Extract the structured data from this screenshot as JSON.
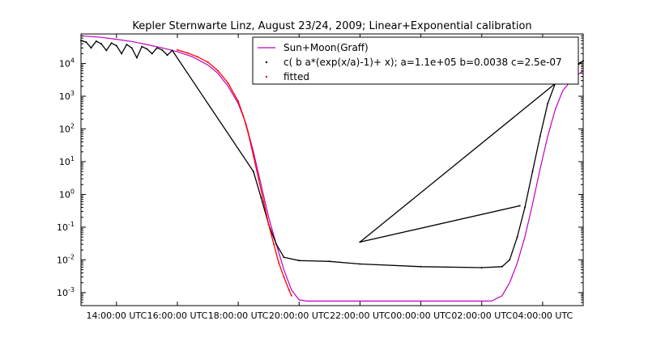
{
  "chart_data": {
    "type": "line",
    "title": "Kepler Sternwarte Linz, August 23/24, 2009; Linear+Exponential calibration",
    "xlabel": "",
    "ylabel": "",
    "x_range": [
      "2009-08-23T12:50",
      "2009-08-24T05:20"
    ],
    "y_scale": "log",
    "ylim": [
      0.0004,
      80000
    ],
    "x_ticks": [
      {
        "t": "2009-08-23T14:00",
        "label": "14:00:00 UTC"
      },
      {
        "t": "2009-08-23T16:00",
        "label": "16:00:00 UTC"
      },
      {
        "t": "2009-08-23T18:00",
        "label": "18:00:00 UTC"
      },
      {
        "t": "2009-08-23T20:00",
        "label": "20:00:00 UTC"
      },
      {
        "t": "2009-08-23T22:00",
        "label": "22:00:00 UTC"
      },
      {
        "t": "2009-08-24T00:00",
        "label": "00:00:00 UTC"
      },
      {
        "t": "2009-08-24T02:00",
        "label": "02:00:00 UTC"
      },
      {
        "t": "2009-08-24T04:00",
        "label": "04:00:00 UTC"
      }
    ],
    "y_ticks": [
      {
        "v": 0.001,
        "base": "10",
        "exp": "-3"
      },
      {
        "v": 0.01,
        "base": "10",
        "exp": "-2"
      },
      {
        "v": 0.1,
        "base": "10",
        "exp": "-1"
      },
      {
        "v": 1,
        "base": "10",
        "exp": "0"
      },
      {
        "v": 10,
        "base": "10",
        "exp": "1"
      },
      {
        "v": 100,
        "base": "10",
        "exp": "2"
      },
      {
        "v": 1000,
        "base": "10",
        "exp": "3"
      },
      {
        "v": 10000,
        "base": "10",
        "exp": "4"
      }
    ],
    "grid": false,
    "legend": "top-right",
    "series": [
      {
        "name": "Sun+Moon(Graff)",
        "style": "line",
        "color": "#bf00bf",
        "points": [
          [
            "2009-08-23T12:50",
            70000
          ],
          [
            "2009-08-23T13:30",
            63000
          ],
          [
            "2009-08-23T14:00",
            55000
          ],
          [
            "2009-08-23T14:30",
            47000
          ],
          [
            "2009-08-23T15:00",
            38000
          ],
          [
            "2009-08-23T15:30",
            30000
          ],
          [
            "2009-08-23T16:00",
            23000
          ],
          [
            "2009-08-23T16:30",
            16000
          ],
          [
            "2009-08-23T17:00",
            9000
          ],
          [
            "2009-08-23T17:20",
            5000
          ],
          [
            "2009-08-23T17:40",
            2000
          ],
          [
            "2009-08-23T18:00",
            600
          ],
          [
            "2009-08-23T18:15",
            150
          ],
          [
            "2009-08-23T18:30",
            20
          ],
          [
            "2009-08-23T18:45",
            2
          ],
          [
            "2009-08-23T19:00",
            0.2
          ],
          [
            "2009-08-23T19:15",
            0.03
          ],
          [
            "2009-08-23T19:30",
            0.005
          ],
          [
            "2009-08-23T19:45",
            0.0012
          ],
          [
            "2009-08-23T20:00",
            0.0006
          ],
          [
            "2009-08-23T20:15",
            0.00055
          ],
          [
            "2009-08-24T02:00",
            0.00055
          ],
          [
            "2009-08-24T02:20",
            0.00056
          ],
          [
            "2009-08-24T02:40",
            0.0008
          ],
          [
            "2009-08-24T02:55",
            0.002
          ],
          [
            "2009-08-24T03:10",
            0.008
          ],
          [
            "2009-08-24T03:25",
            0.05
          ],
          [
            "2009-08-24T03:40",
            0.5
          ],
          [
            "2009-08-24T03:55",
            6
          ],
          [
            "2009-08-24T04:10",
            60
          ],
          [
            "2009-08-24T04:25",
            400
          ],
          [
            "2009-08-24T04:40",
            1500
          ],
          [
            "2009-08-24T05:00",
            3500
          ],
          [
            "2009-08-24T05:20",
            6000
          ]
        ]
      },
      {
        "name": "c( b a*(exp(x/a)-1)+ x); a=1.1e+05 b=0.0038 c=2.5e-07",
        "style": "points",
        "color": "#000000",
        "points": [
          [
            "2009-08-23T12:50",
            50000
          ],
          [
            "2009-08-23T13:00",
            45000
          ],
          [
            "2009-08-23T13:10",
            30000
          ],
          [
            "2009-08-23T13:20",
            48000
          ],
          [
            "2009-08-23T13:30",
            40000
          ],
          [
            "2009-08-23T13:40",
            25000
          ],
          [
            "2009-08-23T13:50",
            42000
          ],
          [
            "2009-08-23T14:00",
            35000
          ],
          [
            "2009-08-23T14:10",
            20000
          ],
          [
            "2009-08-23T14:20",
            38000
          ],
          [
            "2009-08-23T14:30",
            30000
          ],
          [
            "2009-08-23T14:40",
            15000
          ],
          [
            "2009-08-23T14:50",
            33000
          ],
          [
            "2009-08-23T15:00",
            28000
          ],
          [
            "2009-08-23T15:10",
            20000
          ],
          [
            "2009-08-23T15:20",
            30000
          ],
          [
            "2009-08-23T15:30",
            26000
          ],
          [
            "2009-08-23T15:40",
            18000
          ],
          [
            "2009-08-23T15:50",
            25000
          ],
          [
            "2009-08-23T18:30",
            5
          ],
          [
            "2009-08-23T18:45",
            0.8
          ],
          [
            "2009-08-23T19:00",
            0.12
          ],
          [
            "2009-08-23T19:15",
            0.03
          ],
          [
            "2009-08-23T19:30",
            0.012
          ],
          [
            "2009-08-23T20:00",
            0.0095
          ],
          [
            "2009-08-23T21:00",
            0.009
          ],
          [
            "2009-08-23T22:00",
            0.0075
          ],
          [
            "2009-08-24T00:00",
            0.0062
          ],
          [
            "2009-08-24T02:00",
            0.0058
          ],
          [
            "2009-08-24T02:40",
            0.0062
          ],
          [
            "2009-08-24T02:55",
            0.01
          ],
          [
            "2009-08-24T03:10",
            0.05
          ],
          [
            "2009-08-24T03:25",
            0.4
          ],
          [
            "2009-08-24T03:40",
            5
          ],
          [
            "2009-08-24T03:55",
            60
          ],
          [
            "2009-08-24T04:10",
            600
          ],
          [
            "2009-08-24T04:25",
            2500
          ],
          [
            "2009-08-24T04:45",
            6000
          ],
          [
            "2009-08-24T05:20",
            12000
          ],
          [
            "2009-08-23T22:00",
            0.035
          ],
          [
            "2009-08-24T03:15",
            0.45
          ]
        ]
      },
      {
        "name": "fitted",
        "style": "points",
        "color": "#ff0000",
        "points": [
          [
            "2009-08-23T16:00",
            26000
          ],
          [
            "2009-08-23T16:20",
            21000
          ],
          [
            "2009-08-23T16:40",
            16000
          ],
          [
            "2009-08-23T17:00",
            11000
          ],
          [
            "2009-08-23T17:20",
            6000
          ],
          [
            "2009-08-23T17:40",
            2500
          ],
          [
            "2009-08-23T18:00",
            700
          ],
          [
            "2009-08-23T18:10",
            250
          ],
          [
            "2009-08-23T18:20",
            70
          ],
          [
            "2009-08-23T18:30",
            15
          ],
          [
            "2009-08-23T18:40",
            3
          ],
          [
            "2009-08-23T18:50",
            0.6
          ],
          [
            "2009-08-23T19:00",
            0.12
          ],
          [
            "2009-08-23T19:10",
            0.03
          ],
          [
            "2009-08-23T19:20",
            0.008
          ],
          [
            "2009-08-23T19:30",
            0.003
          ],
          [
            "2009-08-23T19:40",
            0.0012
          ],
          [
            "2009-08-23T19:45",
            0.0008
          ]
        ]
      }
    ]
  }
}
